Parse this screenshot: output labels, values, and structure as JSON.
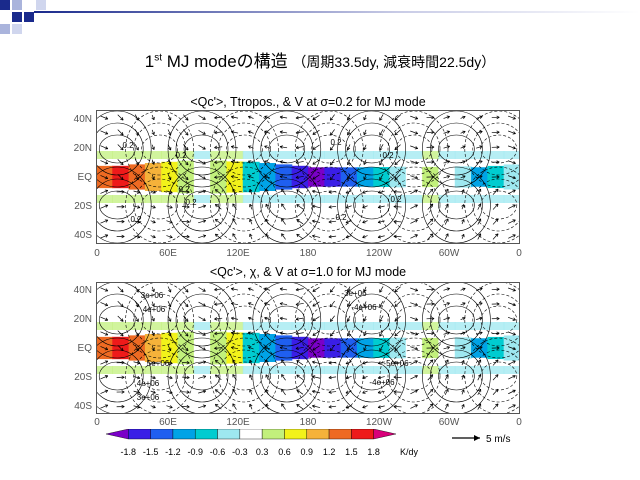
{
  "slide_title": {
    "prefix": "1",
    "sup": "st",
    "main": " MJ modeの構造",
    "sub": "（周期33.5dy, 減衰時間22.5dy）"
  },
  "chart_data": [
    {
      "type": "heatmap",
      "title": "<Qc'>, Ttropos., & V at σ=0.2 for MJ mode",
      "x_tick_labels": [
        "0",
        "60E",
        "120E",
        "180",
        "120W",
        "60W",
        "0"
      ],
      "y_tick_labels": [
        "40N",
        "20N",
        "EQ",
        "20S",
        "40S"
      ],
      "contour_labels": [
        "0.2",
        "0.2",
        "0.2",
        "0.2",
        "0.2",
        "0.2",
        "0.2",
        "0.2",
        "0.2"
      ],
      "vectors": true
    },
    {
      "type": "heatmap",
      "title": "<Qc'>, χ, & V at σ=1.0 for MJ mode",
      "x_tick_labels": [
        "0",
        "60E",
        "120E",
        "180",
        "120W",
        "60W",
        "0"
      ],
      "y_tick_labels": [
        "40N",
        "20N",
        "EQ",
        "20S",
        "40S"
      ],
      "contour_labels": [
        "3e+06",
        "4e+06",
        "5e+06",
        "4e+06",
        "3e+06",
        "-3e+06",
        "-4e+06",
        "-5e+06",
        "-4e+06",
        "-3e+06"
      ],
      "vectors": true
    }
  ],
  "colorbar": {
    "ticks": [
      "-1.8",
      "-1.5",
      "-1.2",
      "-0.9",
      "-0.6",
      "-0.3",
      "0.3",
      "0.6",
      "0.9",
      "1.2",
      "1.5",
      "1.8"
    ],
    "unit": "K/dy",
    "colors": [
      "#7a00c8",
      "#3a1ee6",
      "#1f5ff0",
      "#00a3e6",
      "#00ccd0",
      "#9ee8f0",
      "#ffffff",
      "#c2f07c",
      "#f2f21a",
      "#f5b23a",
      "#ee6a22",
      "#ee1a1a",
      "#d8007a"
    ]
  },
  "vector_key": {
    "label": "5 m/s"
  }
}
